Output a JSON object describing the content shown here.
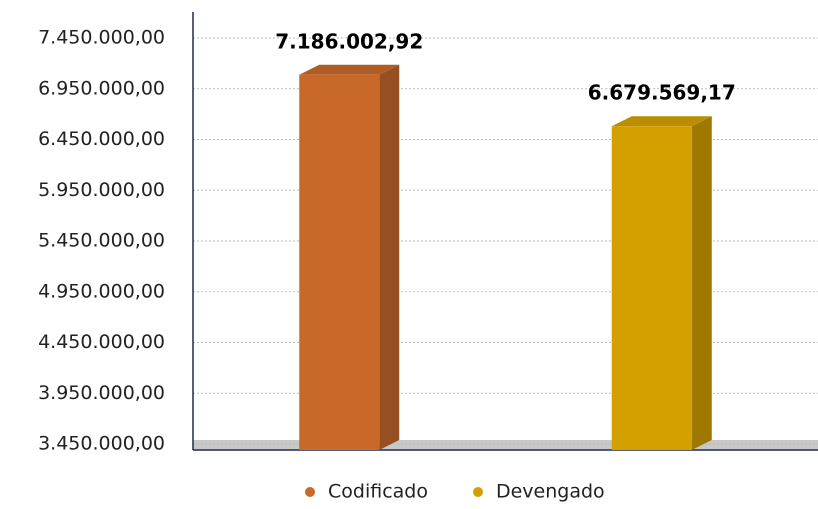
{
  "chart_data": {
    "type": "bar3d",
    "series": [
      {
        "name": "Codificado",
        "color": "#c8692a",
        "values": [
          7186002.92
        ],
        "value_labels": [
          "7.186.002,92"
        ]
      },
      {
        "name": "Devengado",
        "color": "#d4a000",
        "values": [
          6679569.17
        ],
        "value_labels": [
          "6.679.569,17"
        ]
      }
    ],
    "ylim": [
      3450000,
      7450000
    ],
    "yticks": [
      {
        "value": 3450000,
        "label": "3.450.000,00"
      },
      {
        "value": 3950000,
        "label": "3.950.000,00"
      },
      {
        "value": 4450000,
        "label": "4.450.000,00"
      },
      {
        "value": 4950000,
        "label": "4.950.000,00"
      },
      {
        "value": 5450000,
        "label": "5.450.000,00"
      },
      {
        "value": 5950000,
        "label": "5.950.000,00"
      },
      {
        "value": 6450000,
        "label": "6.450.000,00"
      },
      {
        "value": 6950000,
        "label": "6.950.000,00"
      },
      {
        "value": 7450000,
        "label": "7.450.000,00"
      }
    ],
    "grid": true,
    "legend": "bottom"
  }
}
